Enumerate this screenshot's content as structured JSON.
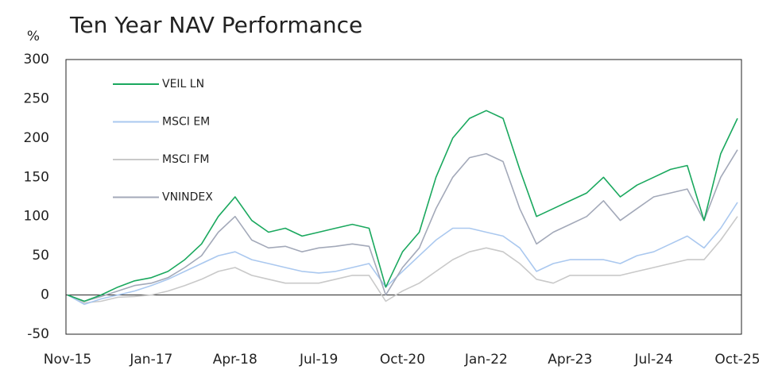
{
  "chart_data": {
    "type": "line",
    "title": "Ten Year NAV Performance",
    "y_label": "%",
    "categories": [
      "Nov-15",
      null,
      null,
      null,
      null,
      "Jan-17",
      null,
      null,
      null,
      null,
      "Apr-18",
      null,
      null,
      null,
      null,
      "Jul-19",
      null,
      null,
      null,
      null,
      "Oct-20",
      null,
      null,
      null,
      null,
      "Jan-22",
      null,
      null,
      null,
      null,
      "Apr-23",
      null,
      null,
      null,
      null,
      "Jul-24",
      null,
      null,
      null,
      null,
      "Oct-25"
    ],
    "series": [
      {
        "name": "VEIL LN",
        "color": "#1aa85e",
        "values": [
          0,
          -8,
          0,
          10,
          18,
          22,
          30,
          45,
          65,
          100,
          125,
          95,
          80,
          85,
          75,
          80,
          85,
          90,
          85,
          10,
          55,
          80,
          150,
          200,
          225,
          235,
          225,
          160,
          100,
          110,
          120,
          130,
          150,
          125,
          140,
          150,
          160,
          165,
          95,
          180,
          225
        ]
      },
      {
        "name": "MSCI EM",
        "color": "#aac8ef",
        "values": [
          0,
          -12,
          -5,
          0,
          5,
          12,
          20,
          30,
          40,
          50,
          55,
          45,
          40,
          35,
          30,
          28,
          30,
          35,
          40,
          10,
          30,
          50,
          70,
          85,
          85,
          80,
          75,
          60,
          30,
          40,
          45,
          45,
          45,
          40,
          50,
          55,
          65,
          75,
          60,
          85,
          118
        ]
      },
      {
        "name": "MSCI FM",
        "color": "#c9c9c9",
        "values": [
          0,
          -10,
          -8,
          -3,
          -2,
          0,
          5,
          12,
          20,
          30,
          35,
          25,
          20,
          15,
          15,
          15,
          20,
          25,
          25,
          -8,
          5,
          15,
          30,
          45,
          55,
          60,
          55,
          40,
          20,
          15,
          25,
          25,
          25,
          25,
          30,
          35,
          40,
          45,
          45,
          70,
          100
        ]
      },
      {
        "name": "VNINDEX",
        "color": "#a3a9b9",
        "values": [
          0,
          -8,
          -2,
          5,
          12,
          15,
          22,
          35,
          50,
          80,
          100,
          70,
          60,
          62,
          55,
          60,
          62,
          65,
          62,
          0,
          35,
          60,
          110,
          150,
          175,
          180,
          170,
          110,
          65,
          80,
          90,
          100,
          120,
          95,
          110,
          125,
          130,
          135,
          95,
          150,
          185
        ]
      }
    ],
    "ylim": [
      -50,
      300
    ],
    "yticks": [
      -50,
      0,
      50,
      100,
      150,
      200,
      250,
      300
    ]
  }
}
